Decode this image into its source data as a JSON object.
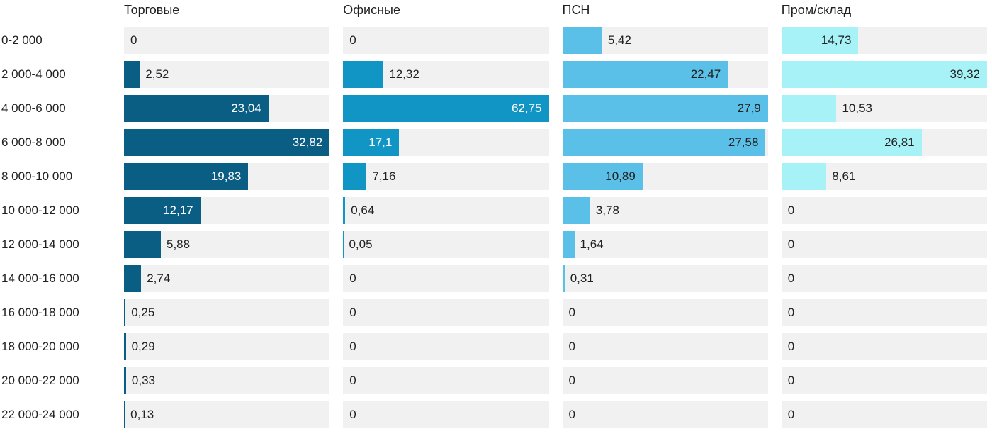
{
  "chart_data": {
    "type": "bar",
    "orientation": "horizontal",
    "title": "",
    "categories": [
      "0-2 000",
      "2 000-4 000",
      "4 000-6 000",
      "6 000-8 000",
      "8 000-10 000",
      "10 000-12 000",
      "12 000-14 000",
      "14 000-16 000",
      "16 000-18 000",
      "18 000-20 000",
      "20 000-22 000",
      "22 000-24 000"
    ],
    "series": [
      {
        "name": "Торговые",
        "color": "#0b5e83",
        "inside_label_color": "#ffffff",
        "values": [
          0,
          2.52,
          23.04,
          32.82,
          19.83,
          12.17,
          5.88,
          2.74,
          0.25,
          0.29,
          0.33,
          0.13
        ]
      },
      {
        "name": "Офисные",
        "color": "#1095c5",
        "inside_label_color": "#ffffff",
        "values": [
          0,
          12.32,
          62.75,
          17.1,
          7.16,
          0.64,
          0.05,
          0,
          0,
          0,
          0,
          0
        ]
      },
      {
        "name": "ПСН",
        "color": "#5ac0e8",
        "inside_label_color": "#212121",
        "values": [
          5.42,
          22.47,
          27.9,
          27.58,
          10.89,
          3.78,
          1.64,
          0.31,
          0,
          0,
          0,
          0
        ]
      },
      {
        "name": "Пром/склад",
        "color": "#a7f2f7",
        "inside_label_color": "#212121",
        "values": [
          14.73,
          39.32,
          10.53,
          26.81,
          8.61,
          0,
          0,
          0,
          0,
          0,
          0,
          0
        ]
      }
    ],
    "column_max": [
      32.82,
      62.75,
      27.9,
      39.32
    ],
    "scaling": "per-column-max",
    "track_color": "#f1f1f1",
    "text_color": "#212121",
    "decimal_separator": ",",
    "grid": false,
    "legend_position": "column-headers"
  }
}
